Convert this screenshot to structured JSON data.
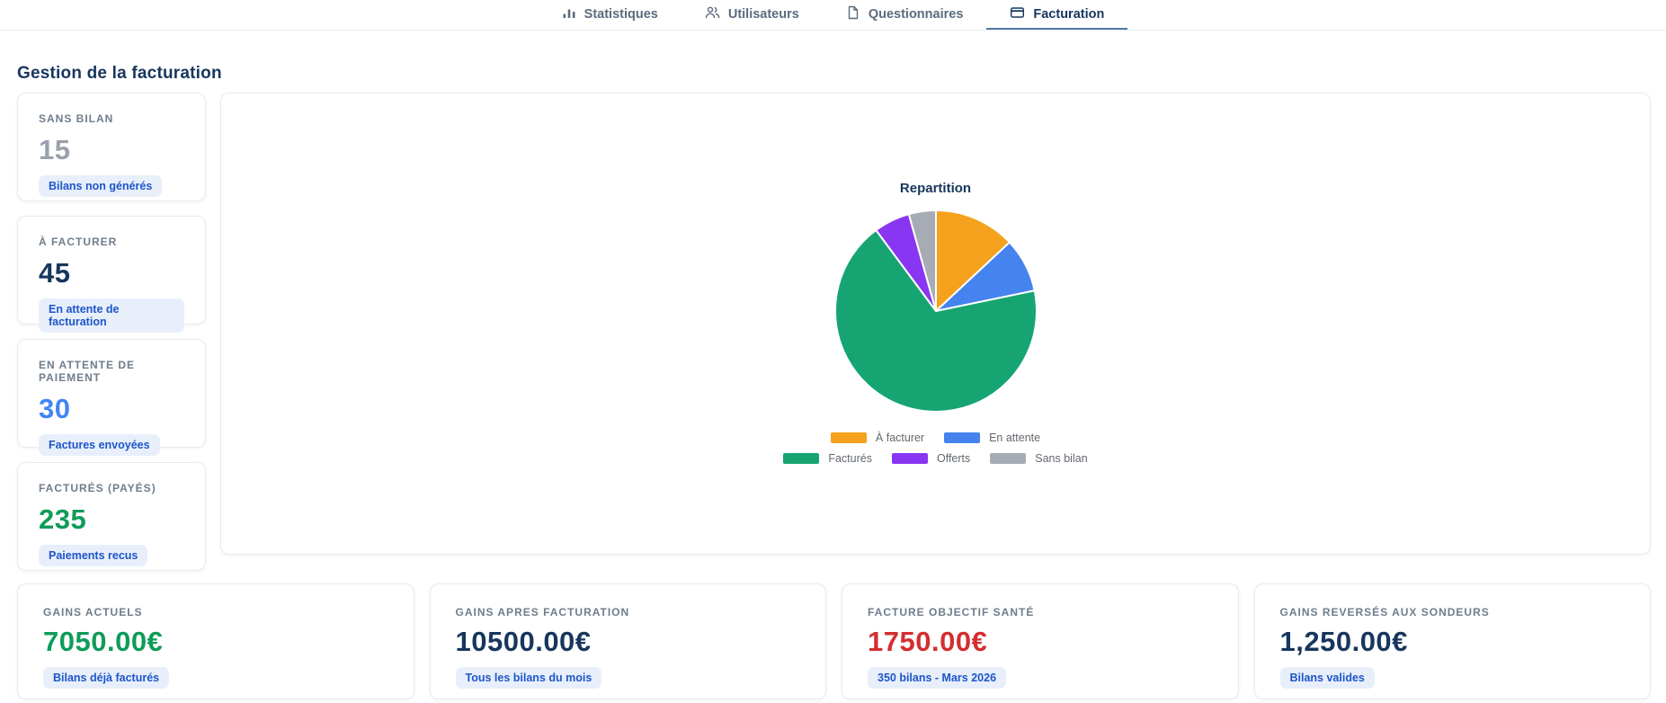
{
  "tabs": [
    {
      "label": "Statistiques",
      "icon": "bar-chart"
    },
    {
      "label": "Utilisateurs",
      "icon": "users"
    },
    {
      "label": "Questionnaires",
      "icon": "document"
    },
    {
      "label": "Facturation",
      "icon": "credit-card",
      "active": true
    }
  ],
  "page_title": "Gestion de la facturation",
  "stat_cards": [
    {
      "label": "SANS BILAN",
      "value": "15",
      "value_color": "#9aa1ab",
      "badge": "Bilans non générés"
    },
    {
      "label": "À FACTURER",
      "value": "45",
      "value_color": "#17365d",
      "badge": "En attente de facturation"
    },
    {
      "label": "EN ATTENTE DE PAIEMENT",
      "value": "30",
      "value_color": "#4285f4",
      "badge": "Factures envoyées"
    },
    {
      "label": "FACTURÉS (PAYÉS)",
      "value": "235",
      "value_color": "#0f9c59",
      "badge": "Paiements recus"
    }
  ],
  "chart_data": {
    "type": "pie",
    "title": "Repartition",
    "labels": [
      "À facturer",
      "En attente",
      "Facturés",
      "Offerts",
      "Sans bilan"
    ],
    "values": [
      45,
      30,
      235,
      20,
      15
    ],
    "colors": [
      "#f4a11d",
      "#4583ef",
      "#16a572",
      "#8936f2",
      "#a7acb4"
    ],
    "legend_position": "bottom",
    "legend_rows": [
      [
        0,
        1
      ],
      [
        2,
        3,
        4
      ]
    ]
  },
  "summary_cards": [
    {
      "label": "GAINS ACTUELS",
      "value": "7050.00€",
      "value_color": "#0f9c59",
      "badge": "Bilans déjà facturés"
    },
    {
      "label": "GAINS APRES FACTURATION",
      "value": "10500.00€",
      "value_color": "#17365d",
      "badge": "Tous les bilans du mois"
    },
    {
      "label": "FACTURE OBJECTIF SANTÉ",
      "value": "1750.00€",
      "value_color": "#d32e31",
      "badge": "350 bilans - Mars 2026"
    },
    {
      "label": "GAINS REVERSÉS AUX SONDEURS",
      "value": "1,250.00€",
      "value_color": "#17365d",
      "badge": "Bilans valides"
    }
  ],
  "theme": {
    "accent_blue": "#4d7ca6",
    "navy_text": "#17365d",
    "badge_bg": "#e8effb",
    "badge_text": "#1d56c8"
  }
}
